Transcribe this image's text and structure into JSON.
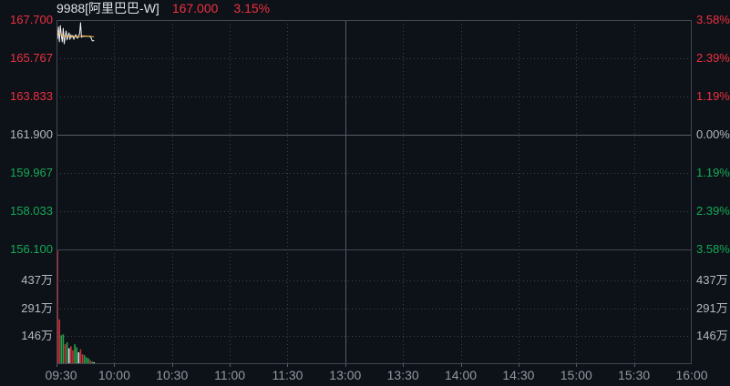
{
  "header": {
    "symbol_title": "9988[阿里巴巴-W]",
    "last_price": "167.000",
    "change_percent": "3.15%"
  },
  "colors": {
    "background": "#0d1118",
    "up_text": "#ee3140",
    "down_text": "#13aa56",
    "neutral_text": "#b4b8c0",
    "time_text": "#9298a3",
    "title_text": "#dde1e7",
    "grid_dotted": "#3c4250",
    "grid_solid": "#565c68",
    "border": "#414753",
    "price_line": "#f4f5f7",
    "avg_line": "#edaa3c",
    "vol_up": "#cb3139",
    "vol_down": "#27a14b",
    "vol_flat": "#e4e6e9"
  },
  "chart_data": {
    "type": "line",
    "title": "9988[阿里巴巴-W] intraday time-share chart",
    "last_price": 167.0,
    "change_percent": 3.15,
    "prev_close": 161.9,
    "price_axis": {
      "min": 156.1,
      "max": 167.7,
      "labels": [
        {
          "text": "167.700",
          "trend": "up"
        },
        {
          "text": "165.767",
          "trend": "up"
        },
        {
          "text": "163.833",
          "trend": "up"
        },
        {
          "text": "161.900",
          "trend": "flat"
        },
        {
          "text": "159.967",
          "trend": "down"
        },
        {
          "text": "158.033",
          "trend": "down"
        },
        {
          "text": "156.100",
          "trend": "down"
        }
      ]
    },
    "percent_axis": {
      "labels": [
        {
          "text": "3.58%",
          "trend": "up"
        },
        {
          "text": "2.39%",
          "trend": "up"
        },
        {
          "text": "1.19%",
          "trend": "up"
        },
        {
          "text": "0.00%",
          "trend": "flat"
        },
        {
          "text": "1.19%",
          "trend": "down"
        },
        {
          "text": "2.39%",
          "trend": "down"
        },
        {
          "text": "3.58%",
          "trend": "down"
        }
      ]
    },
    "volume_axis": {
      "unit": "万",
      "max_wan": 600,
      "gridline_values_wan": [
        437,
        291,
        146
      ],
      "labels": [
        "437万",
        "291万",
        "146万"
      ]
    },
    "time_axis": {
      "labels": [
        "09:30",
        "10:00",
        "10:30",
        "11:00",
        "11:30",
        "13:00",
        "13:30",
        "14:00",
        "14:30",
        "15:00",
        "15:30",
        "16:00"
      ],
      "session_divider_label": "13:00",
      "total_minutes": 330
    },
    "price_series": {
      "start_min": 0,
      "step_min": 0.5,
      "prices": [
        167.45,
        166.75,
        167.35,
        166.6,
        167.42,
        166.95,
        166.6,
        167.28,
        166.5,
        166.85,
        167.15,
        166.7,
        166.9,
        167.05,
        166.72,
        166.95,
        166.82,
        166.92,
        166.72,
        166.88,
        166.96,
        166.82,
        166.78,
        166.92,
        167.0,
        167.56,
        166.82,
        166.88,
        166.87,
        166.88,
        166.87,
        166.88,
        166.87,
        166.87,
        166.88,
        166.85,
        166.8,
        166.66,
        166.64,
        166.68
      ],
      "avg_prices": [
        167.3,
        167.12,
        167.05,
        167.0,
        166.97,
        166.94,
        166.92,
        166.91,
        166.9,
        166.89,
        166.88,
        166.88,
        166.87,
        166.87,
        166.87,
        166.87,
        166.86,
        166.86,
        166.86,
        166.86,
        166.86,
        166.86,
        166.86,
        166.86,
        166.86,
        166.87,
        166.88,
        166.9,
        166.9,
        166.9,
        166.89,
        166.89,
        166.89,
        166.88,
        166.88,
        166.88,
        166.87,
        166.86,
        166.86,
        166.85
      ]
    },
    "volume_series": {
      "unit": "万",
      "note": "one bar per minute from 09:30; first bar clipped at pane top",
      "bars": [
        {
          "v": 800,
          "c": "u"
        },
        {
          "v": 234,
          "c": "u"
        },
        {
          "v": 151,
          "c": "d"
        },
        {
          "v": 156,
          "c": "d"
        },
        {
          "v": 104,
          "c": "u"
        },
        {
          "v": 114,
          "c": "d"
        },
        {
          "v": 83,
          "c": "f"
        },
        {
          "v": 94,
          "c": "u"
        },
        {
          "v": 73,
          "c": "u"
        },
        {
          "v": 104,
          "c": "d"
        },
        {
          "v": 88,
          "c": "d"
        },
        {
          "v": 62,
          "c": "f"
        },
        {
          "v": 78,
          "c": "u"
        },
        {
          "v": 52,
          "c": "u"
        },
        {
          "v": 47,
          "c": "d"
        },
        {
          "v": 36,
          "c": "d"
        },
        {
          "v": 31,
          "c": "d"
        },
        {
          "v": 21,
          "c": "u"
        },
        {
          "v": 14,
          "c": "d"
        },
        {
          "v": 10,
          "c": "f"
        }
      ]
    }
  }
}
